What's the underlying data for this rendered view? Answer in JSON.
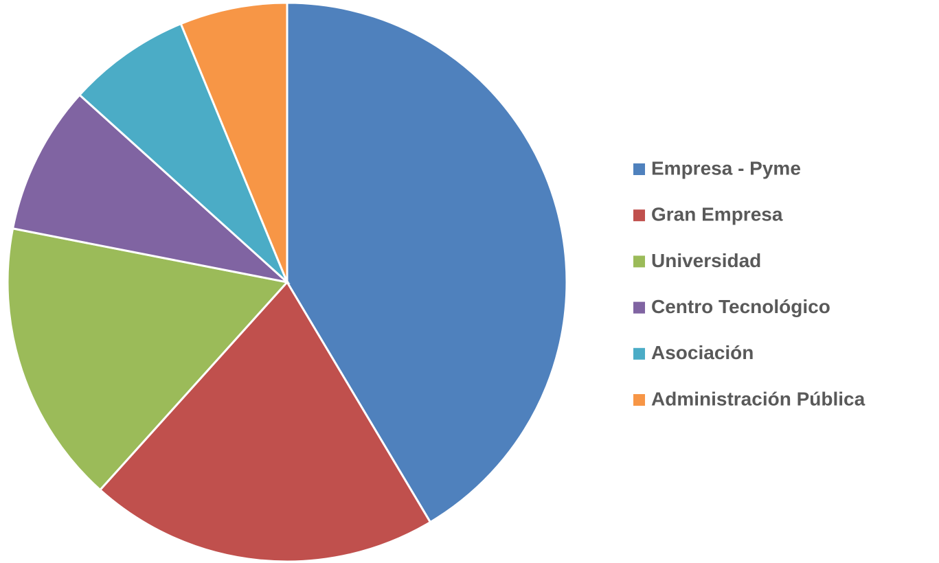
{
  "chart_data": {
    "type": "pie",
    "categories": [
      "Empresa - Pyme",
      "Gran Empresa",
      "Universidad",
      "Centro Tecnológico",
      "Asociación",
      "Administración Pública"
    ],
    "values": [
      41.4,
      20.2,
      16.4,
      8.6,
      7.1,
      6.2
    ],
    "colors": [
      "#4f81bd",
      "#c0504d",
      "#9bbb59",
      "#8064a2",
      "#4bacc6",
      "#f79646"
    ],
    "legend": "right"
  }
}
